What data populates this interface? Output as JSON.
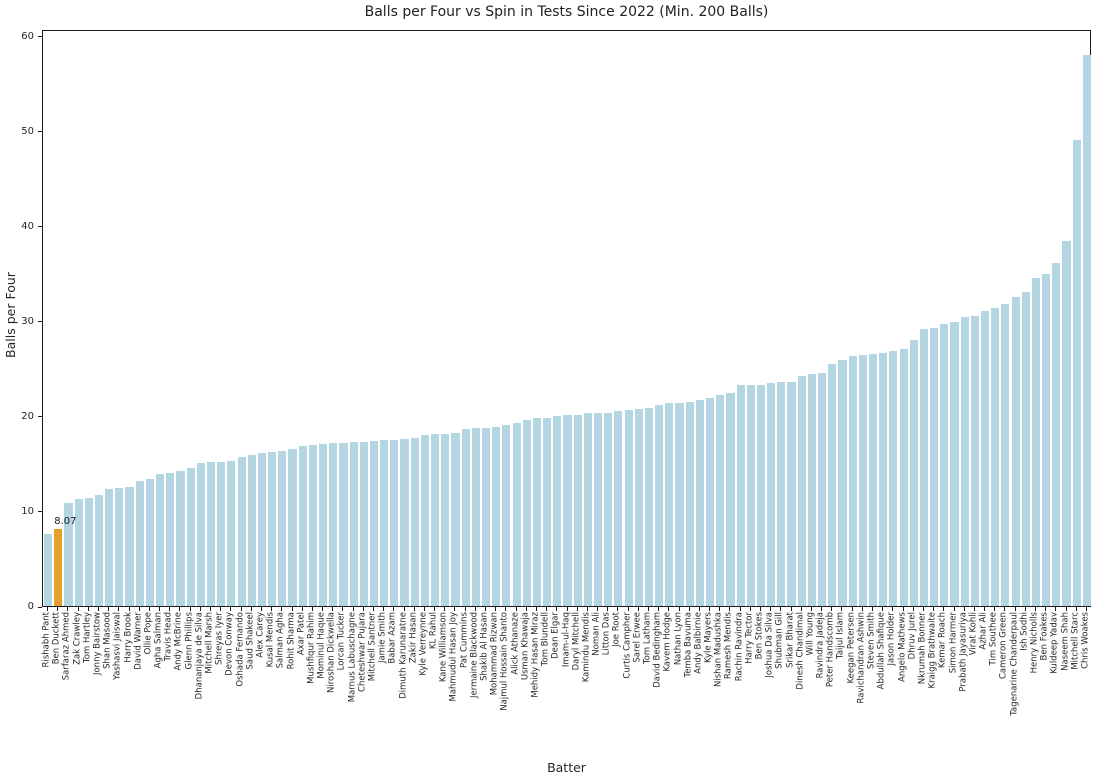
{
  "chart_data": {
    "type": "bar",
    "title": "Balls per Four vs Spin in Tests Since 2022 (Min. 200 Balls)",
    "xlabel": "Batter",
    "ylabel": "Balls per Four",
    "ylim": [
      0,
      60.7
    ],
    "yticks": [
      0,
      10,
      20,
      30,
      40,
      50,
      60
    ],
    "grid": false,
    "bar_color": "#b4d5e2",
    "highlight_color": "#e5a02d",
    "highlight_index": 1,
    "annotation": {
      "text": "8.07",
      "category": "Ben Duckett"
    },
    "categories": [
      "Rishabh Pant",
      "Ben Duckett",
      "Sarfaraz Ahmed",
      "Zak Crawley",
      "Tom Hartley",
      "Jonny Bairstow",
      "Shan Masood",
      "Yashasvi Jaiswal",
      "Harry Brook",
      "David Warner",
      "Ollie Pope",
      "Agha Salman",
      "Travis Head",
      "Andy McBrine",
      "Glenn Phillips",
      "Dhananjaya de Silva",
      "Mitchell Marsh",
      "Shreyas Iyer",
      "Devon Conway",
      "Oshada Fernando",
      "Saud Shakeel",
      "Alex Carey",
      "Kusal Mendis",
      "Salman Agha",
      "Rohit Sharma",
      "Axar Patel",
      "Mushfiqur Rahim",
      "Mominul Haque",
      "Niroshan Dickwella",
      "Lorcan Tucker",
      "Marnus Labuschagne",
      "Cheteshwar Pujara",
      "Mitchell Santner",
      "Jamie Smith",
      "Babar Azam",
      "Dimuth Karunaratne",
      "Zakir Hasan",
      "Kyle Verreynne",
      "KL Rahul",
      "Kane Williamson",
      "Mahmudul Hasan Joy",
      "Pat Cummins",
      "Jermaine Blackwood",
      "Shakib Al Hasan",
      "Mohammad Rizwan",
      "Najmul Hossain Shanto",
      "Alick Athanaze",
      "Usman Khawaja",
      "Mehidy Hasan Miraz",
      "Tom Blundell",
      "Dean Elgar",
      "Imam-ul-Haq",
      "Daryl Mitchell",
      "Kamindu Mendis",
      "Noman Ali",
      "Litton Das",
      "Joe Root",
      "Curtis Campher",
      "Sarel Erwee",
      "Tom Latham",
      "David Bedingham",
      "Kavem Hodge",
      "Nathan Lyon",
      "Temba Bavuma",
      "Andy Balbirnie",
      "Kyle Mayers",
      "Nishan Madushka",
      "Ramesh Mendis",
      "Rachin Ravindra",
      "Harry Tector",
      "Ben Stokes",
      "Joshua Da Silva",
      "Shubman Gill",
      "Srikar Bharat",
      "Dinesh Chandimal",
      "Will Young",
      "Ravindra Jadeja",
      "Peter Handscomb",
      "Taijul Islam",
      "Keegan Petersen",
      "Ravichandran Ashwin",
      "Steven Smith",
      "Abdullah Shafique",
      "Jason Holder",
      "Angelo Mathews",
      "Dhruv Jurel",
      "Nkrumah Bonner",
      "Kraigg Brathwaite",
      "Kemar Roach",
      "Simon Harmer",
      "Prabath Jayasuriya",
      "Virat Kohli",
      "Azhar Ali",
      "Tim Southee",
      "Cameron Green",
      "Tagenarine Chanderpaul",
      "Ish Sodhi",
      "Henry Nicholls",
      "Ben Foakes",
      "Kuldeep Yadav",
      "Naseem Shah",
      "Mitchell Starc",
      "Chris Woakes"
    ],
    "values": [
      7.6,
      8.07,
      10.8,
      11.3,
      11.4,
      11.7,
      12.3,
      12.4,
      12.5,
      13.1,
      13.4,
      13.9,
      14.0,
      14.2,
      14.5,
      15.0,
      15.1,
      15.2,
      15.3,
      15.7,
      15.9,
      16.1,
      16.2,
      16.3,
      16.5,
      16.8,
      16.9,
      17.0,
      17.1,
      17.2,
      17.3,
      17.3,
      17.4,
      17.5,
      17.5,
      17.6,
      17.7,
      18.0,
      18.1,
      18.1,
      18.2,
      18.6,
      18.7,
      18.7,
      18.8,
      19.0,
      19.3,
      19.6,
      19.8,
      19.8,
      20.0,
      20.1,
      20.1,
      20.3,
      20.3,
      20.3,
      20.5,
      20.6,
      20.7,
      20.8,
      21.1,
      21.4,
      21.4,
      21.5,
      21.7,
      21.9,
      22.2,
      22.4,
      23.2,
      23.3,
      23.3,
      23.5,
      23.6,
      23.6,
      24.2,
      24.4,
      24.5,
      25.5,
      25.9,
      26.3,
      26.4,
      26.5,
      26.6,
      26.8,
      27.0,
      28.0,
      29.1,
      29.2,
      29.7,
      29.9,
      30.4,
      30.5,
      31.0,
      31.3,
      31.8,
      32.5,
      33.0,
      34.5,
      34.9,
      36.1,
      38.4,
      49.0,
      58.0
    ]
  }
}
